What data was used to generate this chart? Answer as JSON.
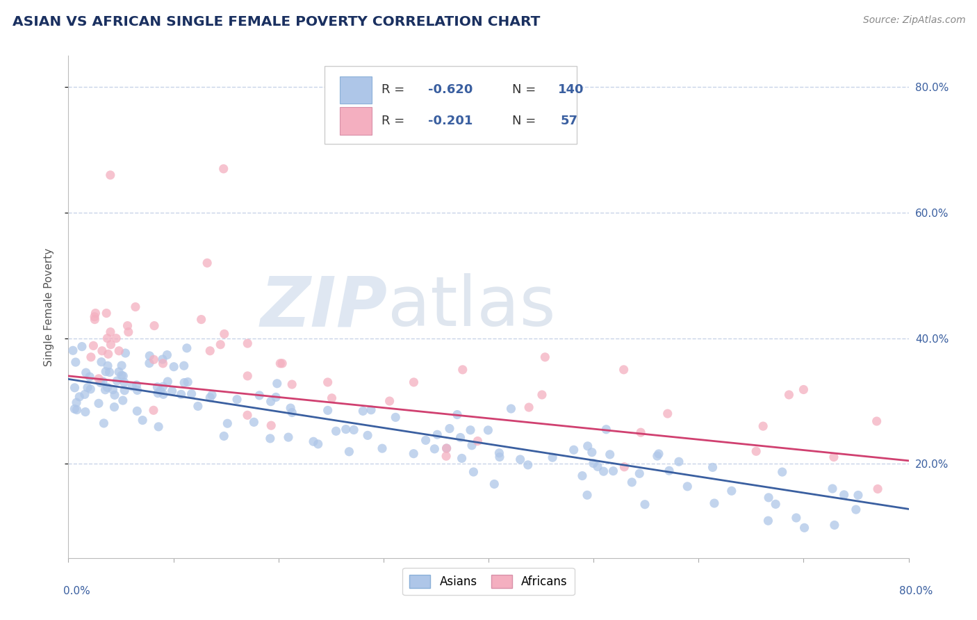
{
  "title": "ASIAN VS AFRICAN SINGLE FEMALE POVERTY CORRELATION CHART",
  "source": "Source: ZipAtlas.com",
  "ylabel": "Single Female Poverty",
  "xmin": 0.0,
  "xmax": 0.8,
  "ymin": 0.05,
  "ymax": 0.85,
  "ytick_vals": [
    0.2,
    0.4,
    0.6,
    0.8
  ],
  "ytick_labels": [
    "20.0%",
    "40.0%",
    "60.0%",
    "80.0%"
  ],
  "asian_color": "#aec6e8",
  "african_color": "#f4afc0",
  "asian_line_color": "#3a5fa0",
  "african_line_color": "#d04070",
  "title_color": "#1a3060",
  "source_color": "#888888",
  "legend_text_color": "#3a5fa0",
  "background_color": "#ffffff",
  "grid_color": "#c8d4e8",
  "asian_line_start_y": 0.335,
  "asian_line_end_y": 0.128,
  "african_line_start_y": 0.34,
  "african_line_end_y": 0.205,
  "watermark_zip_color": "#c5d5e8",
  "watermark_atlas_color": "#b8c8dc"
}
